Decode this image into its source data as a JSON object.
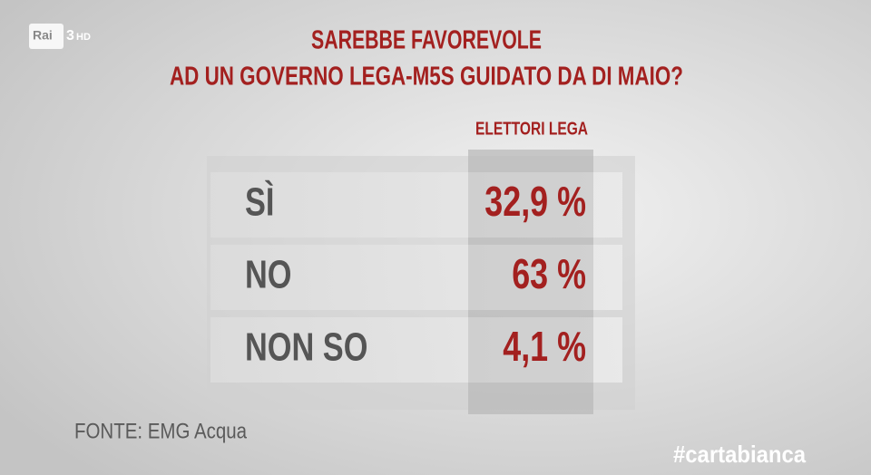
{
  "logo": {
    "channel": "Rai",
    "number": "3",
    "suffix": "HD"
  },
  "header": {
    "title_line_1": "SAREBBE FAVOREVOLE",
    "title_line_2": "AD UN GOVERNO LEGA-M5S GUIDATO DA DI MAIO?"
  },
  "table": {
    "column_header": "ELETTORI LEGA",
    "rows": [
      [
        "SÌ",
        "32,9 %"
      ],
      [
        "NO",
        "63 %"
      ],
      [
        "NON SO",
        "4,1 %"
      ]
    ]
  },
  "footer": {
    "source": "FONTE: EMG Acqua",
    "hashtag": "#cartabianca"
  }
}
